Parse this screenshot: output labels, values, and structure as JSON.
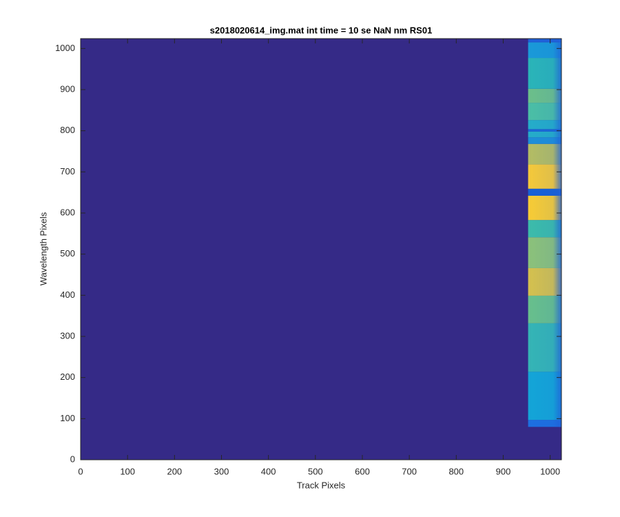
{
  "chart_data": {
    "type": "image",
    "title": "s2018020614_img.mat int time = 10 se  NaN nm RS01",
    "xlabel": "Track Pixels",
    "ylabel": "Wavelength Pixels",
    "xlim": [
      0,
      1024
    ],
    "ylim": [
      0,
      1024
    ],
    "xticks": [
      0,
      100,
      200,
      300,
      400,
      500,
      600,
      700,
      800,
      900,
      1000
    ],
    "yticks": [
      0,
      100,
      200,
      300,
      400,
      500,
      600,
      700,
      800,
      900,
      1000
    ],
    "background": "#352a87",
    "band_x": [
      953,
      1024
    ],
    "bands": [
      {
        "y": [
          80,
          97
        ],
        "color": "#1d6fe0"
      },
      {
        "y": [
          97,
          214
        ],
        "color": "#14a5d7"
      },
      {
        "y": [
          214,
          332
        ],
        "color": "#35b5b5"
      },
      {
        "y": [
          332,
          399
        ],
        "color": "#68c08c"
      },
      {
        "y": [
          399,
          466
        ],
        "color": "#d5c14e"
      },
      {
        "y": [
          466,
          541
        ],
        "color": "#8cc27a"
      },
      {
        "y": [
          541,
          583
        ],
        "color": "#3cbcaa"
      },
      {
        "y": [
          583,
          642
        ],
        "color": "#f8cc35"
      },
      {
        "y": [
          642,
          659
        ],
        "color": "#1860d5"
      },
      {
        "y": [
          659,
          718
        ],
        "color": "#f5c93a"
      },
      {
        "y": [
          718,
          768
        ],
        "color": "#b4bd63"
      },
      {
        "y": [
          768,
          784
        ],
        "color": "#1e8fd8"
      },
      {
        "y": [
          784,
          798
        ],
        "color": "#25adc9"
      },
      {
        "y": [
          798,
          804
        ],
        "color": "#1a68d8"
      },
      {
        "y": [
          804,
          826
        ],
        "color": "#25adc9"
      },
      {
        "y": [
          826,
          868
        ],
        "color": "#4bbfa5"
      },
      {
        "y": [
          868,
          902
        ],
        "color": "#6cc08a"
      },
      {
        "y": [
          902,
          977
        ],
        "color": "#2ab5b8"
      },
      {
        "y": [
          977,
          1015
        ],
        "color": "#1a9ad8"
      },
      {
        "y": [
          1015,
          1024
        ],
        "color": "#1f5fd8"
      }
    ]
  }
}
